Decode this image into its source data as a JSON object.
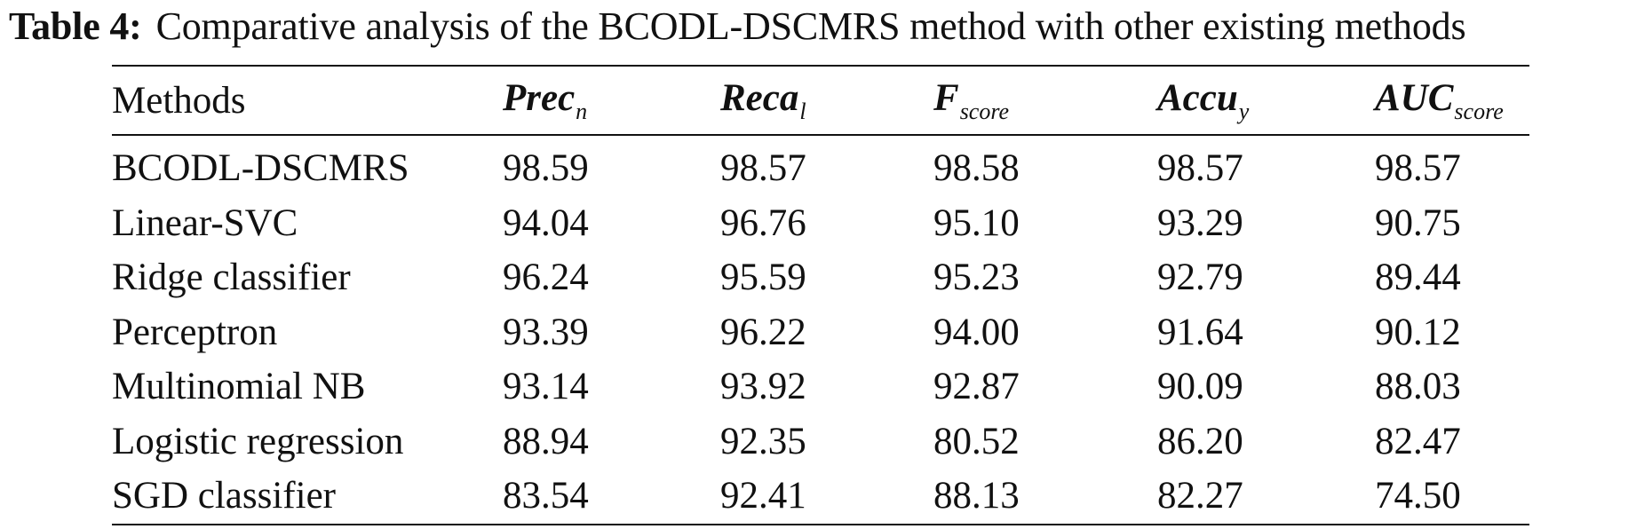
{
  "caption": {
    "label": "Table 4:",
    "text": "Comparative analysis of the BCODL-DSCMRS method with other existing methods"
  },
  "table": {
    "header": {
      "methods": "Methods",
      "prec": {
        "main": "Prec",
        "sub": "n"
      },
      "reca": {
        "main": "Reca",
        "sub": "l"
      },
      "fscore": {
        "main": "F",
        "sub": "score"
      },
      "accu": {
        "main": "Accu",
        "sub": "y"
      },
      "auc": {
        "main": "AUC",
        "sub": "score"
      }
    },
    "rows": [
      {
        "method": "BCODL-DSCMRS",
        "prec": "98.59",
        "reca": "98.57",
        "fscore": "98.58",
        "accu": "98.57",
        "auc": "98.57"
      },
      {
        "method": "Linear-SVC",
        "prec": "94.04",
        "reca": "96.76",
        "fscore": "95.10",
        "accu": "93.29",
        "auc": "90.75"
      },
      {
        "method": "Ridge classifier",
        "prec": "96.24",
        "reca": "95.59",
        "fscore": "95.23",
        "accu": "92.79",
        "auc": "89.44"
      },
      {
        "method": "Perceptron",
        "prec": "93.39",
        "reca": "96.22",
        "fscore": "94.00",
        "accu": "91.64",
        "auc": "90.12"
      },
      {
        "method": "Multinomial NB",
        "prec": "93.14",
        "reca": "93.92",
        "fscore": "92.87",
        "accu": "90.09",
        "auc": "88.03"
      },
      {
        "method": "Logistic regression",
        "prec": "88.94",
        "reca": "92.35",
        "fscore": "80.52",
        "accu": "86.20",
        "auc": "82.47"
      },
      {
        "method": "SGD classifier",
        "prec": "83.54",
        "reca": "92.41",
        "fscore": "88.13",
        "accu": "82.27",
        "auc": "74.50"
      }
    ]
  }
}
